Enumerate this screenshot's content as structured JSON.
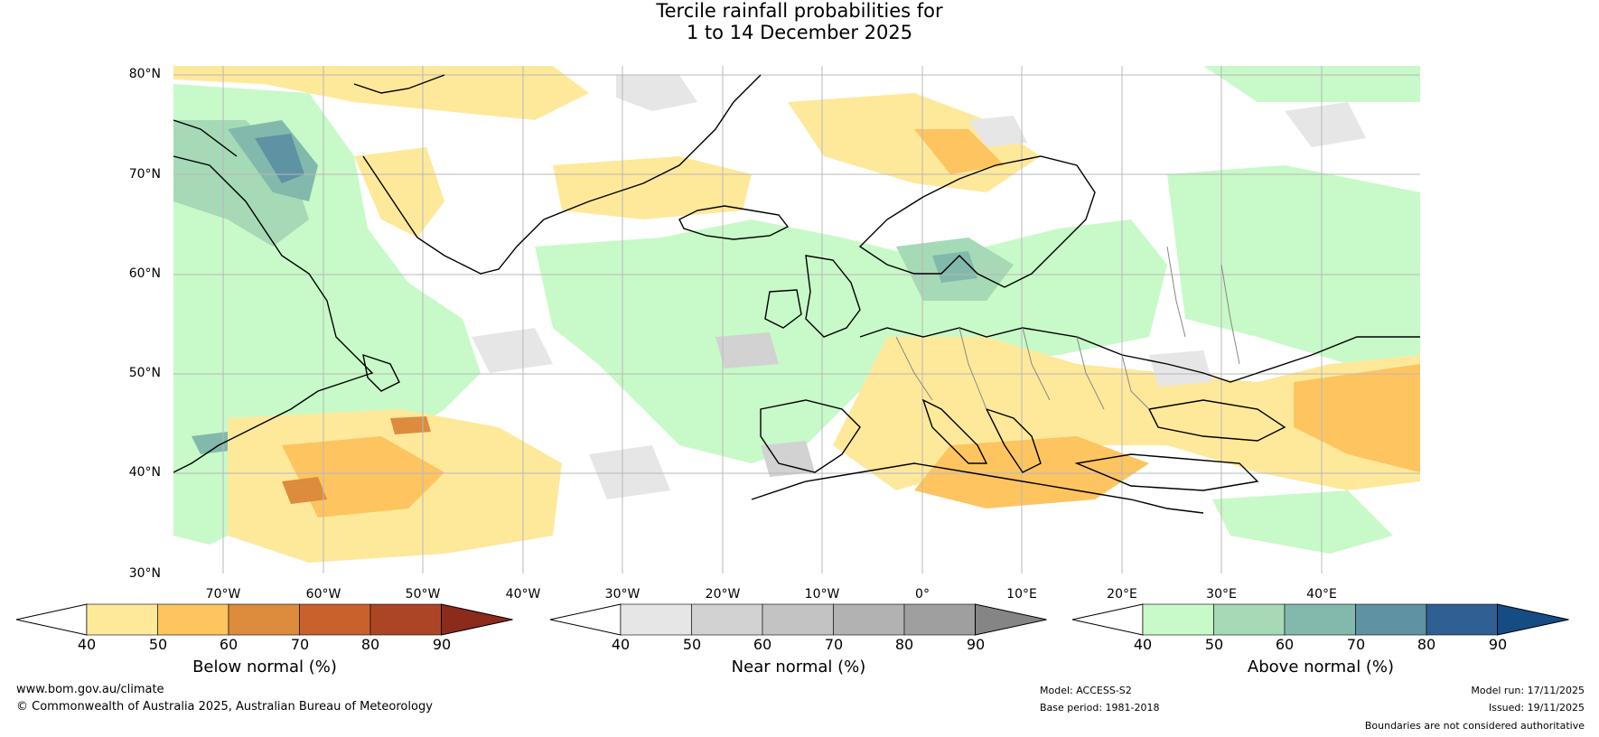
{
  "title": {
    "line1": "Tercile rainfall probabilities for",
    "line2": "1 to 14 December 2025"
  },
  "lat_labels": [
    "80°N",
    "70°N",
    "60°N",
    "50°N",
    "40°N",
    "30°N"
  ],
  "lon_labels": [
    "70°W",
    "60°W",
    "50°W",
    "40°W",
    "30°W",
    "20°W",
    "10°W",
    "0°",
    "10°E",
    "20°E",
    "30°E",
    "40°E"
  ],
  "colorbars": {
    "below": {
      "label": "Below normal (%)",
      "ticks": [
        "40",
        "50",
        "60",
        "70",
        "80",
        "90"
      ],
      "colors": [
        "#ffffff",
        "#fee99b",
        "#fdc45f",
        "#dd8b3d",
        "#c9612d",
        "#ac4526",
        "#8b2b1c"
      ]
    },
    "near": {
      "label": "Near normal (%)",
      "ticks": [
        "40",
        "50",
        "60",
        "70",
        "80",
        "90"
      ],
      "colors": [
        "#ffffff",
        "#e6e6e6",
        "#d2d2d2",
        "#c3c3c3",
        "#b2b2b2",
        "#9f9f9f",
        "#858585"
      ]
    },
    "above": {
      "label": "Above normal (%)",
      "ticks": [
        "40",
        "50",
        "60",
        "70",
        "80",
        "90"
      ],
      "colors": [
        "#ffffff",
        "#c8f9c8",
        "#a6d9b6",
        "#82b9ac",
        "#5f92a2",
        "#305f94",
        "#154c84"
      ]
    }
  },
  "footer": {
    "website": "www.bom.gov.au/climate",
    "copyright": "© Commonwealth of Australia 2025, Australian Bureau of Meteorology",
    "model": "Model: ACCESS-S2",
    "base_period": "Base period: 1981-2018",
    "model_run": "Model run: 17/11/2025",
    "issued": "Issued: 19/11/2025",
    "disclaimer": "Boundaries are not considered authoritative"
  }
}
